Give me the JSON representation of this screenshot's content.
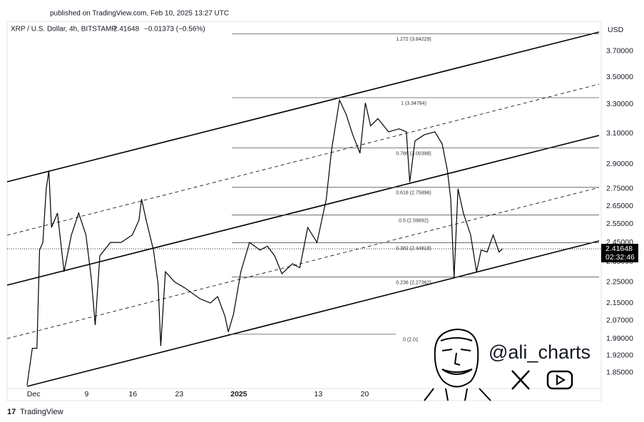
{
  "header": {
    "published": "published on TradingView.com, Feb 10, 2025 13:27 UTC",
    "footer": "TradingView"
  },
  "chart_data": {
    "type": "line",
    "title": "XRP / U.S. Dollar, 4h, BITSTAMP",
    "last_price": 2.41648,
    "change": "−0.01373 (−0.56%)",
    "currency": "USD",
    "countdown": "02:32:46",
    "log_scale": true,
    "grid": false,
    "color": "#000000",
    "xlim": [
      -4,
      85.4
    ],
    "ylim": [
      1.788,
      3.916
    ],
    "xticks": [
      {
        "value": 0,
        "label": "Dec"
      },
      {
        "value": 8,
        "label": "9"
      },
      {
        "value": 15,
        "label": "16"
      },
      {
        "value": 22,
        "label": "23"
      },
      {
        "value": 31,
        "label": "2025"
      },
      {
        "value": 43,
        "label": "13"
      },
      {
        "value": 50,
        "label": "20"
      }
    ],
    "yticks": [
      {
        "value": 3.7,
        "label": "3.70000"
      },
      {
        "value": 3.5,
        "label": "3.50000"
      },
      {
        "value": 3.3,
        "label": "3.30000"
      },
      {
        "value": 3.1,
        "label": "3.10000"
      },
      {
        "value": 2.9,
        "label": "2.90000"
      },
      {
        "value": 2.75,
        "label": "2.75000"
      },
      {
        "value": 2.65,
        "label": "2.65000"
      },
      {
        "value": 2.55,
        "label": "2.55000"
      },
      {
        "value": 2.45,
        "label": "2.45000"
      },
      {
        "value": 2.35,
        "label": "2.35000"
      },
      {
        "value": 2.25,
        "label": "2.25000"
      },
      {
        "value": 2.15,
        "label": "2.15000"
      },
      {
        "value": 2.07,
        "label": "2.07000"
      },
      {
        "value": 1.99,
        "label": "1.99000"
      },
      {
        "value": 1.92,
        "label": "1.92000"
      },
      {
        "value": 1.85,
        "label": "1.85000"
      }
    ],
    "x": [
      -1.0,
      -0.2,
      0.5,
      0.9,
      1.4,
      1.9,
      2.3,
      2.7,
      3.6,
      4.6,
      5.7,
      6.8,
      7.9,
      8.7,
      9.3,
      10.0,
      11.6,
      13.2,
      14.9,
      15.9,
      16.3,
      17.0,
      18.1,
      18.8,
      19.2,
      19.9,
      21.3,
      22.9,
      25.1,
      26.7,
      27.8,
      28.9,
      29.4,
      30.2,
      31.3,
      32.6,
      34.2,
      35.3,
      36.4,
      37.5,
      39.1,
      40.2,
      41.4,
      42.8,
      44.2,
      45.0,
      45.5,
      46.2,
      47.2,
      48.2,
      49.3,
      50.1,
      50.9,
      52.0,
      53.6,
      55.2,
      56.3,
      56.8,
      57.6,
      59.0,
      60.6,
      61.7,
      62.5,
      63.0,
      63.5,
      64.1,
      64.9,
      66.0,
      66.9,
      67.6,
      68.5,
      69.4,
      70.3,
      70.8
    ],
    "values": [
      1.8,
      1.95,
      1.95,
      2.41,
      2.45,
      2.75,
      2.86,
      2.53,
      2.61,
      2.3,
      2.49,
      2.61,
      2.49,
      2.27,
      2.05,
      2.38,
      2.45,
      2.45,
      2.49,
      2.57,
      2.69,
      2.57,
      2.41,
      2.24,
      1.96,
      2.3,
      2.25,
      2.22,
      2.17,
      2.15,
      2.18,
      2.09,
      2.02,
      2.1,
      2.3,
      2.45,
      2.41,
      2.43,
      2.38,
      2.29,
      2.34,
      2.32,
      2.53,
      2.45,
      2.69,
      2.99,
      3.13,
      3.33,
      3.23,
      3.09,
      2.97,
      3.31,
      3.15,
      3.2,
      3.11,
      3.13,
      3.11,
      2.79,
      3.05,
      3.09,
      3.11,
      3.03,
      2.86,
      2.69,
      2.27,
      2.75,
      2.61,
      2.49,
      2.3,
      2.41,
      2.4,
      2.49,
      2.4,
      2.41648
    ],
    "fib_levels": [
      {
        "label": "1.272 (3.84229)",
        "value": 3.84229
      },
      {
        "label": "1 (3.34784)",
        "value": 3.34784
      },
      {
        "label": "0.786 (3.00398)",
        "value": 3.00398
      },
      {
        "label": "0.618 (2.75896)",
        "value": 2.75896
      },
      {
        "label": "0.5 (2.59892)",
        "value": 2.59892
      },
      {
        "label": "0.382 (2.44818)",
        "value": 2.44818
      },
      {
        "label": "0.236 (2.27362)",
        "value": 2.27362
      },
      {
        "label": "0 (2.01",
        "value": 2.01
      }
    ],
    "watermark": "@ali_charts"
  }
}
